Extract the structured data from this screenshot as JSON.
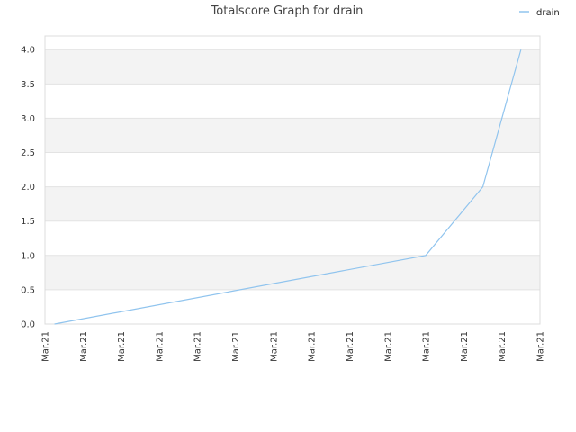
{
  "chart_data": {
    "type": "line",
    "title": "Totalscore Graph for drain",
    "xlabel": "",
    "ylabel": "",
    "legend_position": "top-right",
    "ylim": [
      0,
      4.2
    ],
    "yticks": [
      "0.0",
      "0.5",
      "1.0",
      "1.5",
      "2.0",
      "2.5",
      "3.0",
      "3.5",
      "4.0"
    ],
    "ytick_values": [
      0,
      0.5,
      1,
      1.5,
      2,
      2.5,
      3,
      3.5,
      4
    ],
    "xticks": [
      "Mar.21",
      "Mar.21",
      "Mar.21",
      "Mar.21",
      "Mar.21",
      "Mar.21",
      "Mar.21",
      "Mar.21",
      "Mar.21",
      "Mar.21",
      "Mar.21",
      "Mar.21",
      "Mar.21",
      "Mar.21"
    ],
    "xlim": [
      0,
      13
    ],
    "grid": "horizontal alternating bands",
    "series": [
      {
        "name": "drain",
        "color": "#90c4ee",
        "x": [
          0.25,
          10.0,
          11.5,
          12.5
        ],
        "y": [
          0,
          1,
          2,
          4
        ]
      }
    ]
  }
}
